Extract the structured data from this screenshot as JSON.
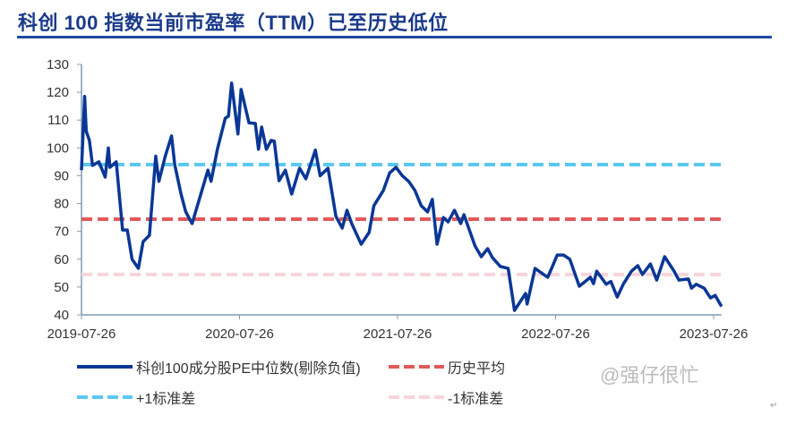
{
  "title": "科创 100 指数当前市盈率（TTM）已至历史低位",
  "watermark": "@强仔很忙",
  "return_mark": "↵",
  "chart_data": {
    "type": "line",
    "title": "科创 100 指数当前市盈率（TTM）已至历史低位",
    "xlabel": "",
    "ylabel": "",
    "x_unit": "years since 2019-07-26",
    "xlim": [
      0,
      4.05
    ],
    "ylim": [
      40,
      130
    ],
    "yticks": [
      40,
      50,
      60,
      70,
      80,
      90,
      100,
      110,
      120,
      130
    ],
    "xticks": [
      {
        "t": 0,
        "label": "2019-07-26"
      },
      {
        "t": 1,
        "label": "2020-07-26"
      },
      {
        "t": 2,
        "label": "2021-07-26"
      },
      {
        "t": 3,
        "label": "2022-07-26"
      },
      {
        "t": 4,
        "label": "2023-07-26"
      }
    ],
    "grid": false,
    "legend_placement": "bottom",
    "series": [
      {
        "name": "科创100成分股PE中位数(剔除负值)",
        "color": "#0a3796",
        "style": "solid",
        "points": [
          [
            0,
            92
          ],
          [
            0.02,
            118.5
          ],
          [
            0.03,
            106
          ],
          [
            0.05,
            102.7
          ],
          [
            0.07,
            93.7
          ],
          [
            0.11,
            95
          ],
          [
            0.15,
            89.5
          ],
          [
            0.17,
            100
          ],
          [
            0.18,
            93
          ],
          [
            0.22,
            95
          ],
          [
            0.26,
            70.5
          ],
          [
            0.29,
            70.5
          ],
          [
            0.32,
            60
          ],
          [
            0.36,
            56.7
          ],
          [
            0.39,
            66.3
          ],
          [
            0.43,
            68.6
          ],
          [
            0.47,
            97
          ],
          [
            0.49,
            88
          ],
          [
            0.53,
            97
          ],
          [
            0.57,
            104.3
          ],
          [
            0.59,
            94
          ],
          [
            0.63,
            83.4
          ],
          [
            0.66,
            77
          ],
          [
            0.7,
            72.8
          ],
          [
            0.75,
            82.4
          ],
          [
            0.8,
            92
          ],
          [
            0.82,
            88
          ],
          [
            0.86,
            99.5
          ],
          [
            0.91,
            110.7
          ],
          [
            0.93,
            111.4
          ],
          [
            0.95,
            123.3
          ],
          [
            0.99,
            105
          ],
          [
            1.01,
            121
          ],
          [
            1.06,
            109
          ],
          [
            1.1,
            108.8
          ],
          [
            1.12,
            99.5
          ],
          [
            1.14,
            107.5
          ],
          [
            1.17,
            99.5
          ],
          [
            1.2,
            102.7
          ],
          [
            1.22,
            102.4
          ],
          [
            1.25,
            88.2
          ],
          [
            1.29,
            92
          ],
          [
            1.33,
            83.4
          ],
          [
            1.38,
            92.7
          ],
          [
            1.42,
            88.9
          ],
          [
            1.48,
            99.2
          ],
          [
            1.51,
            90
          ],
          [
            1.56,
            92.7
          ],
          [
            1.61,
            75.4
          ],
          [
            1.65,
            71.2
          ],
          [
            1.68,
            77.6
          ],
          [
            1.71,
            72.8
          ],
          [
            1.77,
            65.4
          ],
          [
            1.82,
            69.6
          ],
          [
            1.85,
            79.2
          ],
          [
            1.91,
            84.7
          ],
          [
            1.95,
            91
          ],
          [
            1.99,
            93
          ],
          [
            2.03,
            90
          ],
          [
            2.07,
            88
          ],
          [
            2.11,
            84.7
          ],
          [
            2.15,
            79.2
          ],
          [
            2.19,
            77
          ],
          [
            2.22,
            81.5
          ],
          [
            2.25,
            65.4
          ],
          [
            2.29,
            75
          ],
          [
            2.32,
            73.4
          ],
          [
            2.36,
            77.6
          ],
          [
            2.4,
            72.8
          ],
          [
            2.42,
            76
          ],
          [
            2.45,
            71.2
          ],
          [
            2.49,
            64.8
          ],
          [
            2.53,
            60.9
          ],
          [
            2.57,
            63.8
          ],
          [
            2.6,
            60.6
          ],
          [
            2.65,
            57.4
          ],
          [
            2.7,
            56.7
          ],
          [
            2.74,
            41.6
          ],
          [
            2.81,
            47.7
          ],
          [
            2.82,
            43.9
          ],
          [
            2.87,
            56.7
          ],
          [
            2.95,
            53.5
          ],
          [
            2.98,
            57.4
          ],
          [
            3.01,
            61.5
          ],
          [
            3.05,
            61.5
          ],
          [
            3.09,
            60
          ],
          [
            3.15,
            50.3
          ],
          [
            3.22,
            53.5
          ],
          [
            3.24,
            51.2
          ],
          [
            3.26,
            55.7
          ],
          [
            3.32,
            51
          ],
          [
            3.35,
            52
          ],
          [
            3.39,
            46.4
          ],
          [
            3.43,
            51.2
          ],
          [
            3.48,
            55.7
          ],
          [
            3.52,
            57.7
          ],
          [
            3.55,
            54.5
          ],
          [
            3.6,
            58.3
          ],
          [
            3.64,
            52.5
          ],
          [
            3.69,
            60.9
          ],
          [
            3.75,
            55.7
          ],
          [
            3.78,
            52.5
          ],
          [
            3.84,
            52.9
          ],
          [
            3.86,
            49.6
          ],
          [
            3.89,
            51
          ],
          [
            3.94,
            49.6
          ],
          [
            3.98,
            46.1
          ],
          [
            4.01,
            47
          ],
          [
            4.05,
            43
          ]
        ]
      },
      {
        "name": "历史平均",
        "color": "#e05a5a",
        "style": "dashed",
        "value": 74.4
      },
      {
        "name": "+1标准差",
        "color": "#5bc8f0",
        "style": "dashed",
        "value": 94
      },
      {
        "name": "-1标准差",
        "color": "#f5d5da",
        "style": "dashed",
        "value": 54.5
      }
    ]
  }
}
